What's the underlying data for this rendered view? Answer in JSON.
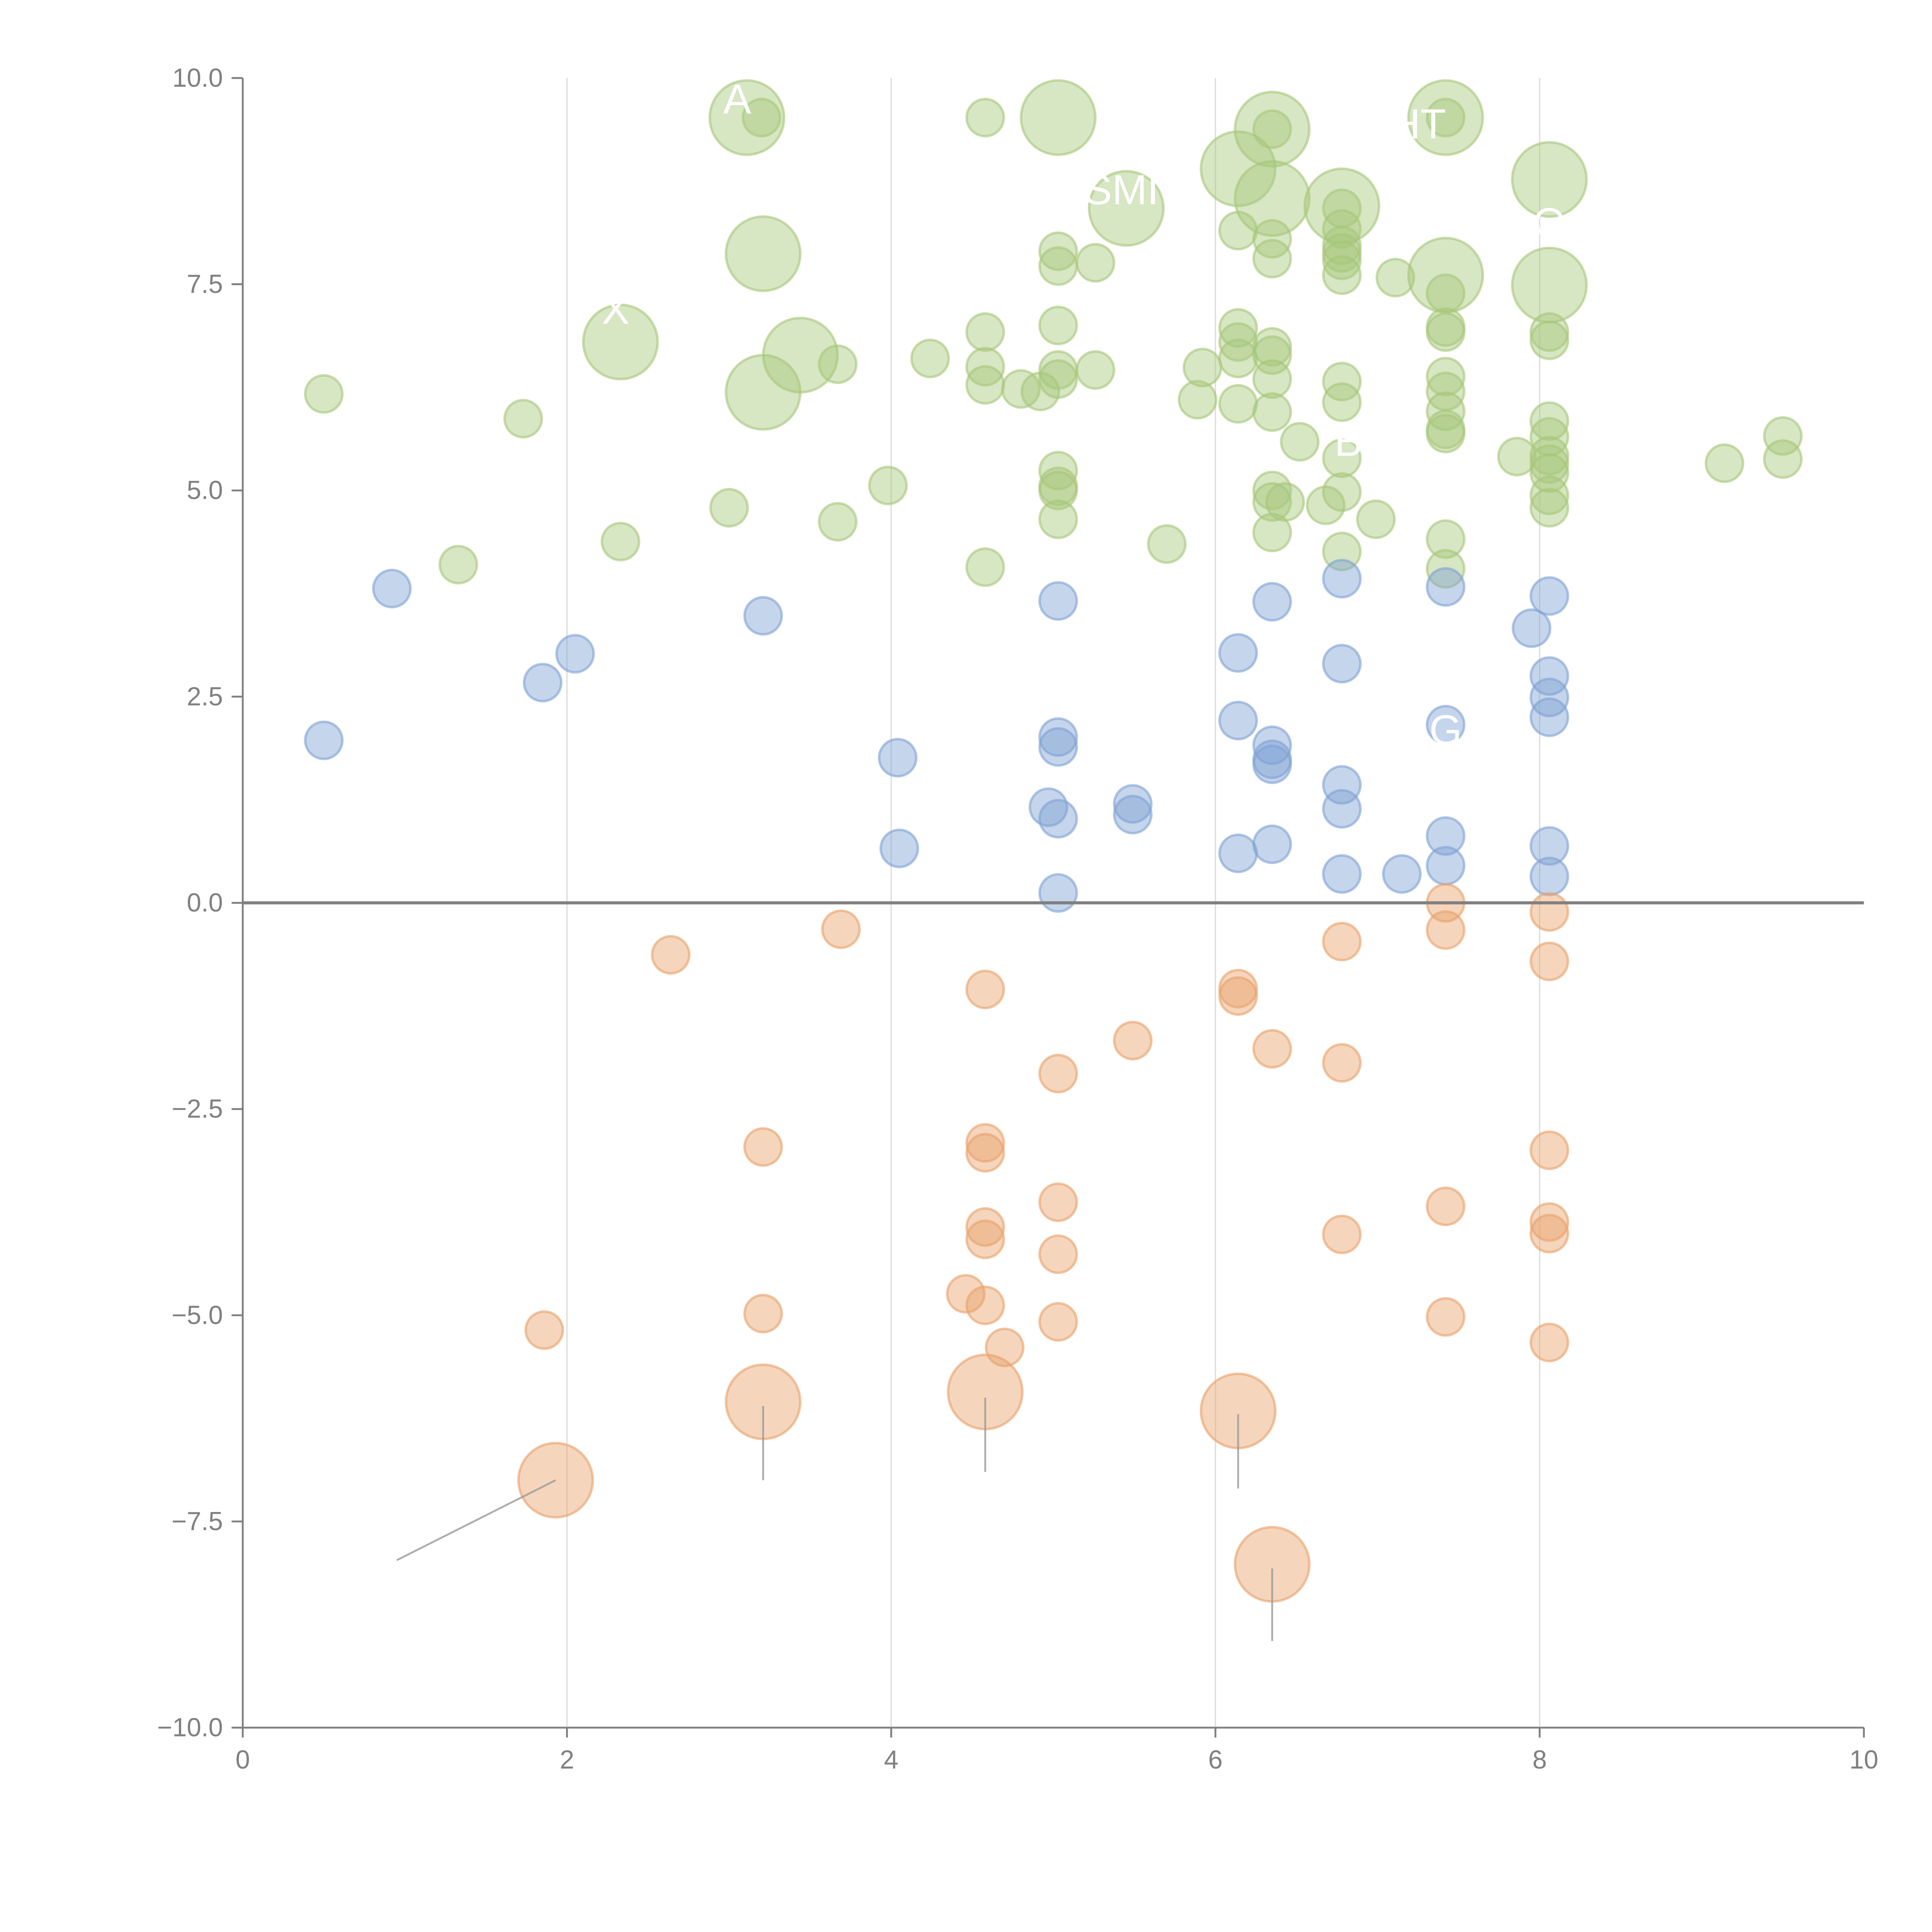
{
  "chart_data": {
    "type": "scatter",
    "title": "",
    "xlabel": "",
    "ylabel": "",
    "xlim": [
      0,
      10
    ],
    "ylim": [
      -10,
      10
    ],
    "xticks": [
      "0",
      "2",
      "4",
      "6",
      "8",
      "10"
    ],
    "yticks": [
      "10.0",
      "7.5",
      "5.0",
      "2.5",
      "0.0",
      "−2.5",
      "−5.0",
      "−7.5",
      "−10.0"
    ],
    "grid": "vertical at x=2,4,6,8",
    "zero_line": true,
    "colors": {
      "green": "#a6c779",
      "blue": "#7fa1d3",
      "orange": "#e8a26a",
      "axis": "#808080"
    },
    "series": [
      {
        "name": "green",
        "color": "#a6c779",
        "points_xys": [
          [
            0.5,
            6.17,
            1
          ],
          [
            1.73,
            5.87,
            1
          ],
          [
            1.33,
            4.1,
            1
          ],
          [
            2.33,
            4.38,
            1
          ],
          [
            3.0,
            4.79,
            1
          ],
          [
            3.2,
            9.52,
            1
          ],
          [
            3.67,
            6.53,
            1
          ],
          [
            3.67,
            4.62,
            1
          ],
          [
            3.98,
            5.06,
            1
          ],
          [
            4.24,
            6.6,
            1
          ],
          [
            4.58,
            9.52,
            1
          ],
          [
            4.58,
            6.92,
            1
          ],
          [
            4.58,
            6.5,
            1
          ],
          [
            4.58,
            6.28,
            1
          ],
          [
            4.58,
            4.07,
            1
          ],
          [
            4.8,
            6.23,
            1
          ],
          [
            4.92,
            6.2,
            1
          ],
          [
            5.03,
            7.9,
            1
          ],
          [
            5.03,
            7.72,
            1
          ],
          [
            5.03,
            7.0,
            1
          ],
          [
            5.03,
            6.46,
            1
          ],
          [
            5.03,
            6.35,
            1
          ],
          [
            5.03,
            5.24,
            1
          ],
          [
            5.03,
            5.05,
            1
          ],
          [
            5.03,
            5.0,
            1
          ],
          [
            5.03,
            4.65,
            1
          ],
          [
            5.26,
            7.76,
            1
          ],
          [
            5.26,
            6.46,
            1
          ],
          [
            5.7,
            4.35,
            1
          ],
          [
            5.89,
            6.1,
            1
          ],
          [
            5.92,
            6.49,
            1
          ],
          [
            6.14,
            8.15,
            1
          ],
          [
            6.14,
            6.97,
            1
          ],
          [
            6.14,
            6.8,
            1
          ],
          [
            6.14,
            6.6,
            1
          ],
          [
            6.14,
            6.05,
            1
          ],
          [
            6.35,
            9.38,
            1
          ],
          [
            6.35,
            8.05,
            1
          ],
          [
            6.35,
            7.81,
            1
          ],
          [
            6.35,
            6.74,
            1
          ],
          [
            6.35,
            6.64,
            1
          ],
          [
            6.35,
            6.35,
            1
          ],
          [
            6.35,
            5.95,
            1
          ],
          [
            6.35,
            5.0,
            1
          ],
          [
            6.35,
            4.86,
            1
          ],
          [
            6.35,
            4.49,
            1
          ],
          [
            6.43,
            4.86,
            1
          ],
          [
            6.52,
            5.59,
            1
          ],
          [
            6.68,
            4.82,
            1
          ],
          [
            6.78,
            8.42,
            1
          ],
          [
            6.78,
            8.17,
            1
          ],
          [
            6.78,
            7.97,
            1
          ],
          [
            6.78,
            7.88,
            1
          ],
          [
            6.78,
            7.79,
            1
          ],
          [
            6.78,
            7.61,
            1
          ],
          [
            6.78,
            6.32,
            1
          ],
          [
            6.78,
            6.07,
            1
          ],
          [
            6.78,
            5.39,
            1
          ],
          [
            6.78,
            4.98,
            1
          ],
          [
            6.78,
            4.26,
            1
          ],
          [
            6.99,
            4.65,
            1
          ],
          [
            7.11,
            7.58,
            1
          ],
          [
            7.42,
            9.52,
            1
          ],
          [
            7.42,
            7.39,
            1
          ],
          [
            7.42,
            6.98,
            1
          ],
          [
            7.42,
            6.92,
            1
          ],
          [
            7.42,
            6.38,
            1
          ],
          [
            7.42,
            6.2,
            1
          ],
          [
            7.42,
            5.96,
            1
          ],
          [
            7.42,
            5.74,
            1
          ],
          [
            7.42,
            5.69,
            1
          ],
          [
            7.42,
            4.41,
            1
          ],
          [
            7.42,
            4.05,
            1
          ],
          [
            7.86,
            5.41,
            1
          ],
          [
            8.06,
            6.92,
            1
          ],
          [
            8.06,
            6.82,
            1
          ],
          [
            8.06,
            5.84,
            1
          ],
          [
            8.06,
            5.65,
            1
          ],
          [
            8.06,
            5.42,
            1
          ],
          [
            8.06,
            5.32,
            1
          ],
          [
            8.06,
            5.21,
            1
          ],
          [
            8.06,
            4.94,
            1
          ],
          [
            8.06,
            4.79,
            1
          ],
          [
            9.14,
            5.33,
            1
          ],
          [
            9.5,
            5.66,
            1
          ],
          [
            9.5,
            5.38,
            1
          ],
          [
            3.11,
            9.52,
            4
          ],
          [
            2.33,
            6.8,
            4
          ],
          [
            3.21,
            7.87,
            4
          ],
          [
            3.21,
            6.19,
            4
          ],
          [
            3.44,
            6.64,
            4
          ],
          [
            5.03,
            9.52,
            4
          ],
          [
            5.45,
            8.42,
            4
          ],
          [
            6.14,
            8.9,
            4
          ],
          [
            6.35,
            9.38,
            4
          ],
          [
            6.35,
            8.54,
            4
          ],
          [
            6.78,
            8.45,
            4
          ],
          [
            7.42,
            9.52,
            4
          ],
          [
            7.42,
            7.61,
            4
          ],
          [
            8.06,
            8.77,
            4
          ],
          [
            8.06,
            7.49,
            4
          ]
        ]
      },
      {
        "name": "blue",
        "color": "#7fa1d3",
        "points_xys": [
          [
            0.5,
            1.97,
            1
          ],
          [
            0.92,
            3.81,
            1
          ],
          [
            1.85,
            2.67,
            1
          ],
          [
            2.05,
            3.02,
            1
          ],
          [
            3.21,
            3.48,
            1
          ],
          [
            4.04,
            1.76,
            1
          ],
          [
            4.05,
            0.66,
            1
          ],
          [
            4.97,
            1.16,
            1
          ],
          [
            5.03,
            3.66,
            1
          ],
          [
            5.03,
            2.01,
            1
          ],
          [
            5.03,
            1.89,
            1
          ],
          [
            5.03,
            1.02,
            1
          ],
          [
            5.03,
            0.12,
            1
          ],
          [
            5.49,
            1.2,
            1
          ],
          [
            5.49,
            1.07,
            1
          ],
          [
            6.14,
            3.03,
            1
          ],
          [
            6.14,
            2.21,
            1
          ],
          [
            6.14,
            0.6,
            1
          ],
          [
            6.35,
            3.65,
            1
          ],
          [
            6.35,
            1.91,
            1
          ],
          [
            6.35,
            1.74,
            1
          ],
          [
            6.35,
            1.68,
            1
          ],
          [
            6.35,
            0.71,
            1
          ],
          [
            6.78,
            3.93,
            1
          ],
          [
            6.78,
            2.9,
            1
          ],
          [
            6.78,
            1.43,
            1
          ],
          [
            6.78,
            1.14,
            1
          ],
          [
            6.78,
            0.35,
            1
          ],
          [
            7.15,
            0.35,
            1
          ],
          [
            7.42,
            3.83,
            1
          ],
          [
            7.42,
            2.16,
            1
          ],
          [
            7.42,
            0.81,
            1
          ],
          [
            7.42,
            0.45,
            1
          ],
          [
            7.95,
            3.33,
            1
          ],
          [
            8.06,
            3.72,
            1
          ],
          [
            8.06,
            2.75,
            1
          ],
          [
            8.06,
            2.49,
            1
          ],
          [
            8.06,
            2.25,
            1
          ],
          [
            8.06,
            0.69,
            1
          ],
          [
            8.06,
            0.32,
            1
          ]
        ]
      },
      {
        "name": "orange",
        "color": "#e8a26a",
        "points_xys": [
          [
            2.64,
            -0.63,
            1
          ],
          [
            3.69,
            -0.32,
            1
          ],
          [
            4.58,
            -1.05,
            1
          ],
          [
            5.49,
            -1.67,
            1
          ],
          [
            5.03,
            -2.07,
            1
          ],
          [
            6.14,
            -1.04,
            1
          ],
          [
            6.14,
            -1.13,
            1
          ],
          [
            6.35,
            -1.77,
            1
          ],
          [
            6.78,
            -1.94,
            1
          ],
          [
            6.78,
            -0.47,
            1
          ],
          [
            7.42,
            0.0,
            1
          ],
          [
            7.42,
            -0.33,
            1
          ],
          [
            8.06,
            -0.11,
            1
          ],
          [
            8.06,
            -0.71,
            1
          ],
          [
            3.21,
            -2.96,
            1
          ],
          [
            4.58,
            -2.91,
            1
          ],
          [
            4.58,
            -3.03,
            1
          ],
          [
            5.03,
            -3.63,
            1
          ],
          [
            4.58,
            -3.93,
            1
          ],
          [
            4.58,
            -4.08,
            1
          ],
          [
            5.03,
            -4.26,
            1
          ],
          [
            6.78,
            -4.02,
            1
          ],
          [
            7.42,
            -3.68,
            1
          ],
          [
            8.06,
            -3.0,
            1
          ],
          [
            8.06,
            -3.87,
            1
          ],
          [
            8.06,
            -4.01,
            1
          ],
          [
            1.86,
            -5.18,
            1
          ],
          [
            3.21,
            -4.98,
            1
          ],
          [
            4.46,
            -4.74,
            1
          ],
          [
            4.58,
            -4.88,
            1
          ],
          [
            4.7,
            -5.39,
            1
          ],
          [
            5.03,
            -5.08,
            1
          ],
          [
            7.42,
            -5.02,
            1
          ],
          [
            8.06,
            -5.33,
            1
          ],
          [
            1.93,
            -7.0,
            4
          ],
          [
            3.21,
            -6.05,
            4
          ],
          [
            4.58,
            -5.93,
            4
          ],
          [
            6.14,
            -6.16,
            4
          ],
          [
            6.35,
            -8.02,
            4
          ]
        ]
      }
    ],
    "leaders": [
      {
        "from": [
          1.93,
          -7.0
        ],
        "to": [
          0.95,
          -7.97
        ]
      },
      {
        "from": [
          3.21,
          -6.1
        ],
        "to": [
          3.21,
          -7.0
        ]
      },
      {
        "from": [
          4.58,
          -6.0
        ],
        "to": [
          4.58,
          -6.9
        ]
      },
      {
        "from": [
          6.14,
          -6.2
        ],
        "to": [
          6.14,
          -7.1
        ]
      },
      {
        "from": [
          6.35,
          -8.07
        ],
        "to": [
          6.35,
          -8.95
        ]
      }
    ],
    "annotations": [
      {
        "text": "A",
        "x": 3.05,
        "y": 9.75
      },
      {
        "text": "X",
        "x": 2.3,
        "y": 7.2
      },
      {
        "text": "SMI",
        "x": 5.42,
        "y": 8.65
      },
      {
        "text": "HT",
        "x": 7.25,
        "y": 9.45
      },
      {
        "text": "O",
        "x": 8.06,
        "y": 8.25
      },
      {
        "text": "B",
        "x": 6.82,
        "y": 5.6
      },
      {
        "text": "G",
        "x": 7.42,
        "y": 2.1
      }
    ]
  }
}
